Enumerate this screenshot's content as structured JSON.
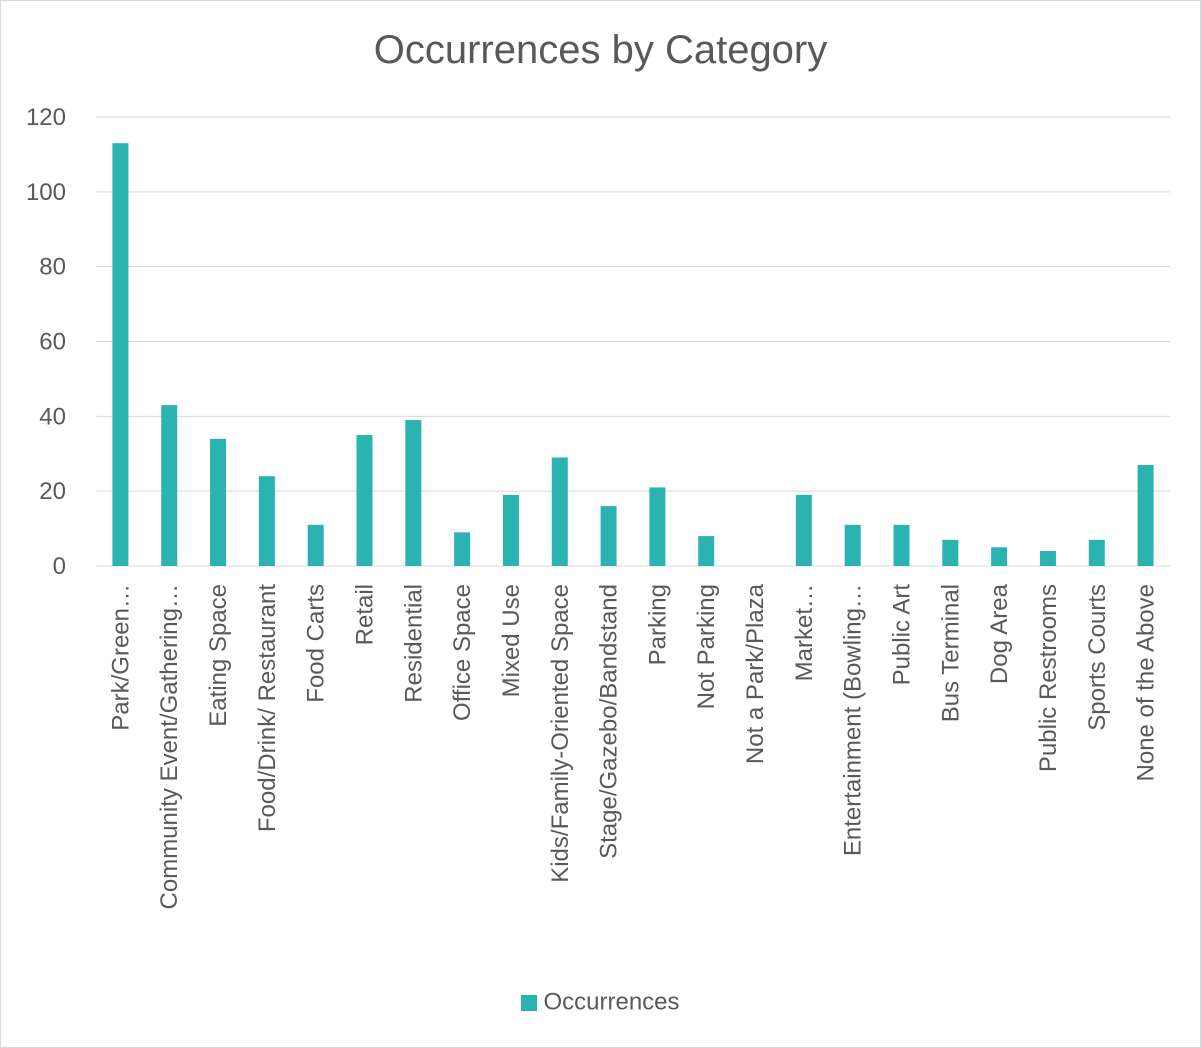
{
  "chart_data": {
    "type": "bar",
    "title": "Occurrences by Category",
    "xlabel": "",
    "ylabel": "",
    "ylim": [
      0,
      120
    ],
    "yticks": [
      0,
      20,
      40,
      60,
      80,
      100,
      120
    ],
    "grid": true,
    "legend_position": "bottom",
    "categories": [
      "Park/Green…",
      "Community Event/Gathering…",
      "Eating Space",
      "Food/Drink/ Restaurant",
      "Food Carts",
      "Retail",
      "Residential",
      "Office Space",
      "Mixed Use",
      "Kids/Family-Oriented Space",
      "Stage/Gazebo/Bandstand",
      "Parking",
      "Not Parking",
      "Not a Park/Plaza",
      "Market…",
      "Entertainment (Bowling…",
      "Public Art",
      "Bus Terminal",
      "Dog Area",
      "Public Restrooms",
      "Sports Courts",
      "None of the Above"
    ],
    "series": [
      {
        "name": "Occurrences",
        "color": "#2bb3b1",
        "values": [
          113,
          43,
          34,
          24,
          11,
          35,
          39,
          9,
          19,
          29,
          16,
          21,
          8,
          0,
          19,
          11,
          11,
          7,
          5,
          4,
          7,
          27
        ]
      }
    ]
  },
  "colors": {
    "gridline": "#d9d9d9",
    "text": "#595959"
  }
}
